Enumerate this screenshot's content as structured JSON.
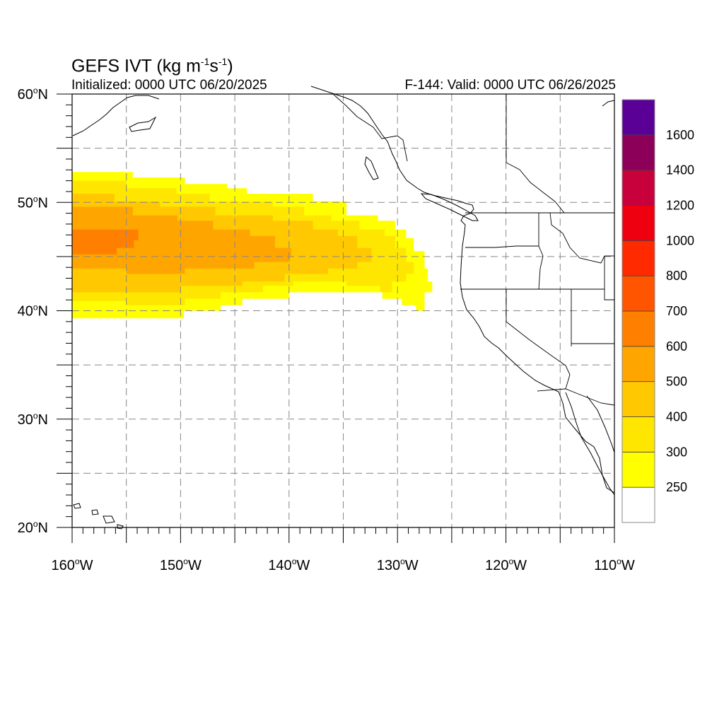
{
  "map": {
    "title_main": "GEFS IVT (kg m",
    "title_exp1": "-1",
    "title_mid": "s",
    "title_exp2": "-1",
    "title_end": ")",
    "initialized": "Initialized: 0000 UTC 06/20/2025",
    "valid": "F-144: Valid: 0000 UTC 06/26/2025",
    "extent": {
      "lon": [
        -160,
        -110
      ],
      "lat": [
        20,
        60
      ]
    },
    "grid_lines": true,
    "lat_ticks": [
      {
        "value": 60,
        "label": "60",
        "hemi": "N"
      },
      {
        "value": 50,
        "label": "50",
        "hemi": "N"
      },
      {
        "value": 40,
        "label": "40",
        "hemi": "N"
      },
      {
        "value": 30,
        "label": "30",
        "hemi": "N"
      },
      {
        "value": 20,
        "label": "20",
        "hemi": "N"
      }
    ],
    "lon_ticks": [
      {
        "value": -160,
        "label": "160",
        "hemi": "W"
      },
      {
        "value": -150,
        "label": "150",
        "hemi": "W"
      },
      {
        "value": -140,
        "label": "140",
        "hemi": "W"
      },
      {
        "value": -130,
        "label": "130",
        "hemi": "W"
      },
      {
        "value": -120,
        "label": "120",
        "hemi": "W"
      },
      {
        "value": -110,
        "label": "110",
        "hemi": "W"
      }
    ],
    "colorbar": {
      "levels": [
        {
          "color": "#ffffff",
          "label": "250"
        },
        {
          "color": "#ffff00",
          "label": "300"
        },
        {
          "color": "#ffe600",
          "label": "400"
        },
        {
          "color": "#ffc800",
          "label": "500"
        },
        {
          "color": "#ffa500",
          "label": "600"
        },
        {
          "color": "#ff8000",
          "label": "700"
        },
        {
          "color": "#ff5500",
          "label": "800"
        },
        {
          "color": "#ff2a00",
          "label": "1000"
        },
        {
          "color": "#ee0011",
          "label": "1200"
        },
        {
          "color": "#c8003c",
          "label": "1400"
        },
        {
          "color": "#8c005a",
          "label": "1600"
        },
        {
          "color": "#5a0096",
          "label": ""
        }
      ]
    },
    "ivt_field": [
      {
        "color": "#ffff00",
        "level": 250,
        "poly": [
          [
            -160,
            52.8
          ],
          [
            -154.4,
            52.8
          ],
          [
            -154.4,
            52.3
          ],
          [
            -149.6,
            52.3
          ],
          [
            -149.6,
            51.7
          ],
          [
            -145.7,
            51.7
          ],
          [
            -145.7,
            51.3
          ],
          [
            -143.9,
            51.3
          ],
          [
            -143.9,
            50.8
          ],
          [
            -137.8,
            50.8
          ],
          [
            -137.8,
            50.1
          ],
          [
            -134.7,
            50.1
          ],
          [
            -134.7,
            48.8
          ],
          [
            -131.8,
            48.8
          ],
          [
            -131.8,
            48.3
          ],
          [
            -130.2,
            48.3
          ],
          [
            -130.2,
            47.5
          ],
          [
            -129.2,
            47.5
          ],
          [
            -129.2,
            46.7
          ],
          [
            -128.5,
            46.7
          ],
          [
            -128.5,
            45.5
          ],
          [
            -127.5,
            45.5
          ],
          [
            -127.5,
            43.9
          ],
          [
            -127.2,
            43.9
          ],
          [
            -127.2,
            42.7
          ],
          [
            -126.8,
            42.7
          ],
          [
            -126.8,
            41.7
          ],
          [
            -127.5,
            41.7
          ],
          [
            -127.5,
            40.0
          ],
          [
            -128.3,
            40.0
          ],
          [
            -128.3,
            40.5
          ],
          [
            -129.6,
            40.5
          ],
          [
            -129.6,
            41.1
          ],
          [
            -131.4,
            41.1
          ],
          [
            -131.4,
            41.7
          ],
          [
            -140.0,
            41.7
          ],
          [
            -140.0,
            41.1
          ],
          [
            -144.3,
            41.1
          ],
          [
            -144.3,
            40.5
          ],
          [
            -146.3,
            40.5
          ],
          [
            -146.3,
            40.0
          ],
          [
            -149.7,
            40.0
          ],
          [
            -149.7,
            39.3
          ],
          [
            -160,
            39.3
          ]
        ]
      },
      {
        "color": "#ffe600",
        "level": 300,
        "poly": [
          [
            -160,
            52.0
          ],
          [
            -155.0,
            52.0
          ],
          [
            -155.0,
            51.3
          ],
          [
            -150.4,
            51.3
          ],
          [
            -150.4,
            50.8
          ],
          [
            -147.3,
            50.8
          ],
          [
            -147.3,
            50.1
          ],
          [
            -141.5,
            50.1
          ],
          [
            -141.5,
            49.6
          ],
          [
            -138.6,
            49.6
          ],
          [
            -138.6,
            48.8
          ],
          [
            -136.1,
            48.8
          ],
          [
            -136.1,
            48.3
          ],
          [
            -133.5,
            48.3
          ],
          [
            -133.5,
            47.5
          ],
          [
            -131.2,
            47.5
          ],
          [
            -131.2,
            46.9
          ],
          [
            -130.2,
            46.9
          ],
          [
            -130.2,
            45.8
          ],
          [
            -129.2,
            45.8
          ],
          [
            -129.2,
            44.5
          ],
          [
            -128.5,
            44.5
          ],
          [
            -128.5,
            43.4
          ],
          [
            -129.2,
            43.4
          ],
          [
            -129.2,
            42.7
          ],
          [
            -130.5,
            42.7
          ],
          [
            -130.5,
            41.7
          ],
          [
            -131.6,
            41.7
          ],
          [
            -131.6,
            42.3
          ],
          [
            -134.7,
            42.3
          ],
          [
            -134.7,
            42.7
          ],
          [
            -139.6,
            42.7
          ],
          [
            -139.6,
            42.3
          ],
          [
            -142.4,
            42.3
          ],
          [
            -142.4,
            41.7
          ],
          [
            -146.3,
            41.7
          ],
          [
            -146.3,
            41.1
          ],
          [
            -149.6,
            41.1
          ],
          [
            -149.6,
            40.5
          ],
          [
            -155.0,
            40.5
          ],
          [
            -155.0,
            40.9
          ],
          [
            -160,
            40.9
          ]
        ]
      },
      {
        "color": "#ffc800",
        "level": 400,
        "poly": [
          [
            -160,
            50.8
          ],
          [
            -156.1,
            50.8
          ],
          [
            -156.1,
            50.1
          ],
          [
            -151.9,
            50.1
          ],
          [
            -151.9,
            49.6
          ],
          [
            -146.8,
            49.6
          ],
          [
            -146.8,
            48.8
          ],
          [
            -141.5,
            48.8
          ],
          [
            -141.5,
            48.3
          ],
          [
            -137.8,
            48.3
          ],
          [
            -137.8,
            47.5
          ],
          [
            -135.5,
            47.5
          ],
          [
            -135.5,
            46.9
          ],
          [
            -133.7,
            46.9
          ],
          [
            -133.7,
            45.8
          ],
          [
            -132.4,
            45.8
          ],
          [
            -132.4,
            44.5
          ],
          [
            -133.7,
            44.5
          ],
          [
            -133.7,
            43.9
          ],
          [
            -136.4,
            43.9
          ],
          [
            -136.4,
            43.4
          ],
          [
            -140.4,
            43.4
          ],
          [
            -140.4,
            42.7
          ],
          [
            -144.3,
            42.7
          ],
          [
            -144.3,
            42.3
          ],
          [
            -150.0,
            42.3
          ],
          [
            -150.0,
            41.7
          ],
          [
            -160,
            41.7
          ]
        ]
      },
      {
        "color": "#ffa500",
        "level": 500,
        "poly": [
          [
            -160,
            49.6
          ],
          [
            -154.4,
            49.6
          ],
          [
            -154.4,
            48.8
          ],
          [
            -150.3,
            48.8
          ],
          [
            -150.3,
            48.3
          ],
          [
            -147.0,
            48.3
          ],
          [
            -147.0,
            47.5
          ],
          [
            -143.6,
            47.5
          ],
          [
            -143.6,
            46.9
          ],
          [
            -141.3,
            46.9
          ],
          [
            -141.3,
            45.8
          ],
          [
            -139.8,
            45.8
          ],
          [
            -139.8,
            45.1
          ],
          [
            -139.9,
            45.1
          ],
          [
            -139.9,
            44.5
          ],
          [
            -143.2,
            44.5
          ],
          [
            -143.2,
            43.9
          ],
          [
            -149.6,
            43.9
          ],
          [
            -149.6,
            43.4
          ],
          [
            -155.0,
            43.4
          ],
          [
            -155.0,
            43.9
          ],
          [
            -160,
            43.9
          ]
        ]
      },
      {
        "color": "#ff8000",
        "level": 600,
        "poly": [
          [
            -160,
            47.5
          ],
          [
            -153.9,
            47.5
          ],
          [
            -153.9,
            46.5
          ],
          [
            -154.3,
            46.5
          ],
          [
            -154.3,
            45.8
          ],
          [
            -155.9,
            45.8
          ],
          [
            -155.9,
            45.2
          ],
          [
            -160,
            45.2
          ]
        ]
      }
    ]
  }
}
